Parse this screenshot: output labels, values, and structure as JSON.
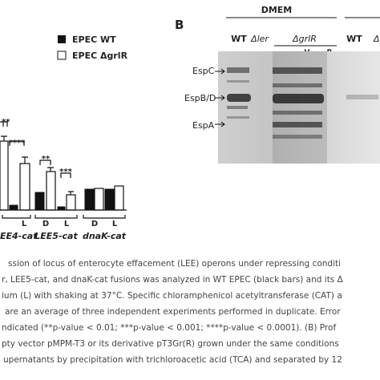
{
  "panel_a": {
    "legend": [
      "EPEC WT",
      "EPEC ΔgrlR"
    ],
    "significance": [
      "**",
      "****",
      "**",
      "***"
    ],
    "lane_labels": [
      "L",
      "D",
      "L",
      "D",
      "L"
    ],
    "groups": [
      "EE4-cat",
      "LEE5-cat",
      "dnaK-cat"
    ]
  },
  "panel_b": {
    "label": "B",
    "header": "DMEM",
    "lanes": [
      "WT",
      "Δler",
      "ΔgrlR",
      "WT",
      "Δl"
    ],
    "sublanes": [
      "–",
      "V",
      "R"
    ],
    "markers": [
      "EspC",
      "EspB/D",
      "EspA"
    ]
  },
  "caption": {
    "lines": [
      "ssion of locus of enterocyte effacement (LEE) operons under repressing conditi",
      "r, LEE5-cat, and dnaK-cat fusions was analyzed in WT EPEC (black bars) and its Δ",
      "ium (L) with shaking at 37°C. Specific chloramphenicol acetyltransferase (CAT) a",
      "are an average of three independent experiments performed in duplicate. Error",
      "ndicated (**p-value < 0.01; ***p-value < 0.001; ****p-value < 0.0001). (B) Prof",
      "pty vector pMPM-T3 or its derivative pT3Gr(R) grown under the same conditions",
      "upernatants by precipitation with trichloroacetic acid (TCA) and separated by 12"
    ]
  }
}
